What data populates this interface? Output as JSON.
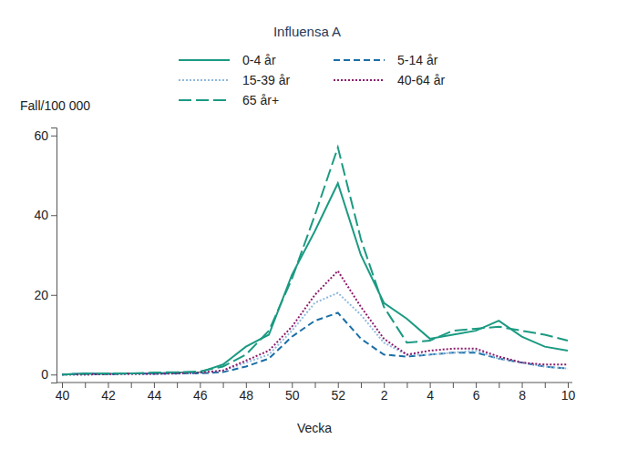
{
  "chart_data": {
    "type": "line",
    "title": "Influensa A",
    "y_label": "Fall/100 000",
    "x_label": "Vecka",
    "categories": [
      "40",
      null,
      "42",
      null,
      "44",
      null,
      "46",
      null,
      "48",
      null,
      "50",
      null,
      "52",
      null,
      "2",
      null,
      "4",
      null,
      "6",
      null,
      "8",
      null,
      "10"
    ],
    "series": [
      {
        "name": "0-4 år",
        "color": "#1b9a82",
        "line_style": "solid",
        "values": [
          0,
          0.3,
          0.2,
          0.3,
          0.3,
          0.5,
          0.6,
          2.5,
          7,
          10,
          25,
          36,
          48,
          30,
          18,
          14,
          9,
          10,
          11,
          13.5,
          9.5,
          7,
          6
        ]
      },
      {
        "name": "5-14 år",
        "color": "#1a6ea6",
        "line_style": "dashed",
        "values": [
          0,
          0.2,
          0.1,
          0.3,
          0.2,
          0.3,
          0.3,
          0.6,
          2,
          4,
          9.5,
          13.5,
          15.5,
          9,
          5,
          4.5,
          5,
          5.5,
          5.5,
          4,
          3,
          2,
          1.5
        ]
      },
      {
        "name": "15-39 år",
        "color": "#8fb8dc",
        "line_style": "dotted",
        "values": [
          0,
          0,
          0.1,
          0.1,
          0.2,
          0.2,
          0.4,
          1,
          3,
          5,
          11,
          18,
          20.5,
          15,
          8,
          5,
          5,
          5.5,
          6,
          4,
          3,
          2,
          1.5
        ]
      },
      {
        "name": "40-64 år",
        "color": "#8c1c6c",
        "line_style": "dotted",
        "values": [
          0,
          0,
          0.1,
          0.2,
          0.2,
          0.3,
          0.5,
          1,
          3.5,
          6,
          12,
          20,
          26,
          17,
          9,
          5,
          6,
          6.5,
          6.5,
          4.5,
          3,
          2.5,
          2.5
        ]
      },
      {
        "name": "65 år+",
        "color": "#1b9a82",
        "line_style": "long_dash",
        "values": [
          0,
          0.2,
          0.3,
          0.3,
          0.5,
          0.6,
          0.8,
          2,
          5,
          11,
          24,
          40,
          57,
          34,
          17,
          8,
          8.5,
          11,
          11.5,
          12,
          11,
          10,
          8.5
        ]
      }
    ],
    "ylim": [
      -2,
      62
    ],
    "yticks": [
      0,
      20,
      40,
      60
    ],
    "grid": false,
    "legend": "top"
  }
}
